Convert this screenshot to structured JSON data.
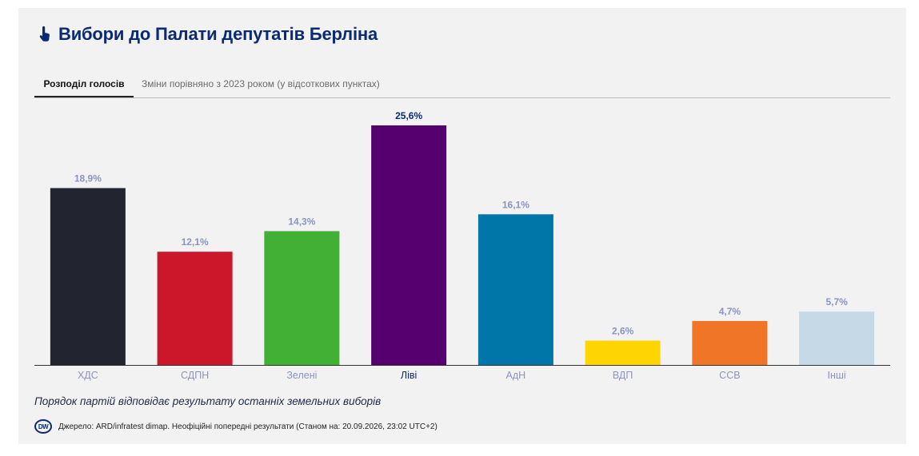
{
  "title": "Вибори до Палати депутатів Берліна",
  "tabs": [
    {
      "label": "Розподіл голосів",
      "active": true
    },
    {
      "label": "Зміни порівняно з 2023 роком (у відсоткових пунктах)",
      "active": false
    }
  ],
  "note": "Порядок партій відповідає результату останніх земельних виборів",
  "source": {
    "logo": "DW",
    "text": "Джерело: ARD/infratest dimap. Неофіційні попередні результати (Станом на: 20.09.2026, 23:02 UTC+2)"
  },
  "colors": {
    "title": "#0a2a73",
    "label_default": "#8a93c4",
    "label_highlight": "#0a2a73",
    "category_default": "#8a93c4",
    "category_highlight": "#0a2a73"
  },
  "chart_data": {
    "type": "bar",
    "categories": [
      "ХДС",
      "СДПН",
      "Зелені",
      "Ліві",
      "АдН",
      "ВДП",
      "ССВ",
      "Інші"
    ],
    "values": [
      18.9,
      12.1,
      14.3,
      25.6,
      16.1,
      2.6,
      4.7,
      5.7
    ],
    "value_labels": [
      "18,9%",
      "12,1%",
      "14,3%",
      "25,6%",
      "16,1%",
      "2,6%",
      "4,7%",
      "5,7%"
    ],
    "colors": [
      "#22252f",
      "#cc172a",
      "#41b035",
      "#55006e",
      "#0076a8",
      "#ffd500",
      "#f07526",
      "#c5d9e6"
    ],
    "highlight_index": 3,
    "ylim": [
      0,
      25.6
    ],
    "grid": false
  }
}
